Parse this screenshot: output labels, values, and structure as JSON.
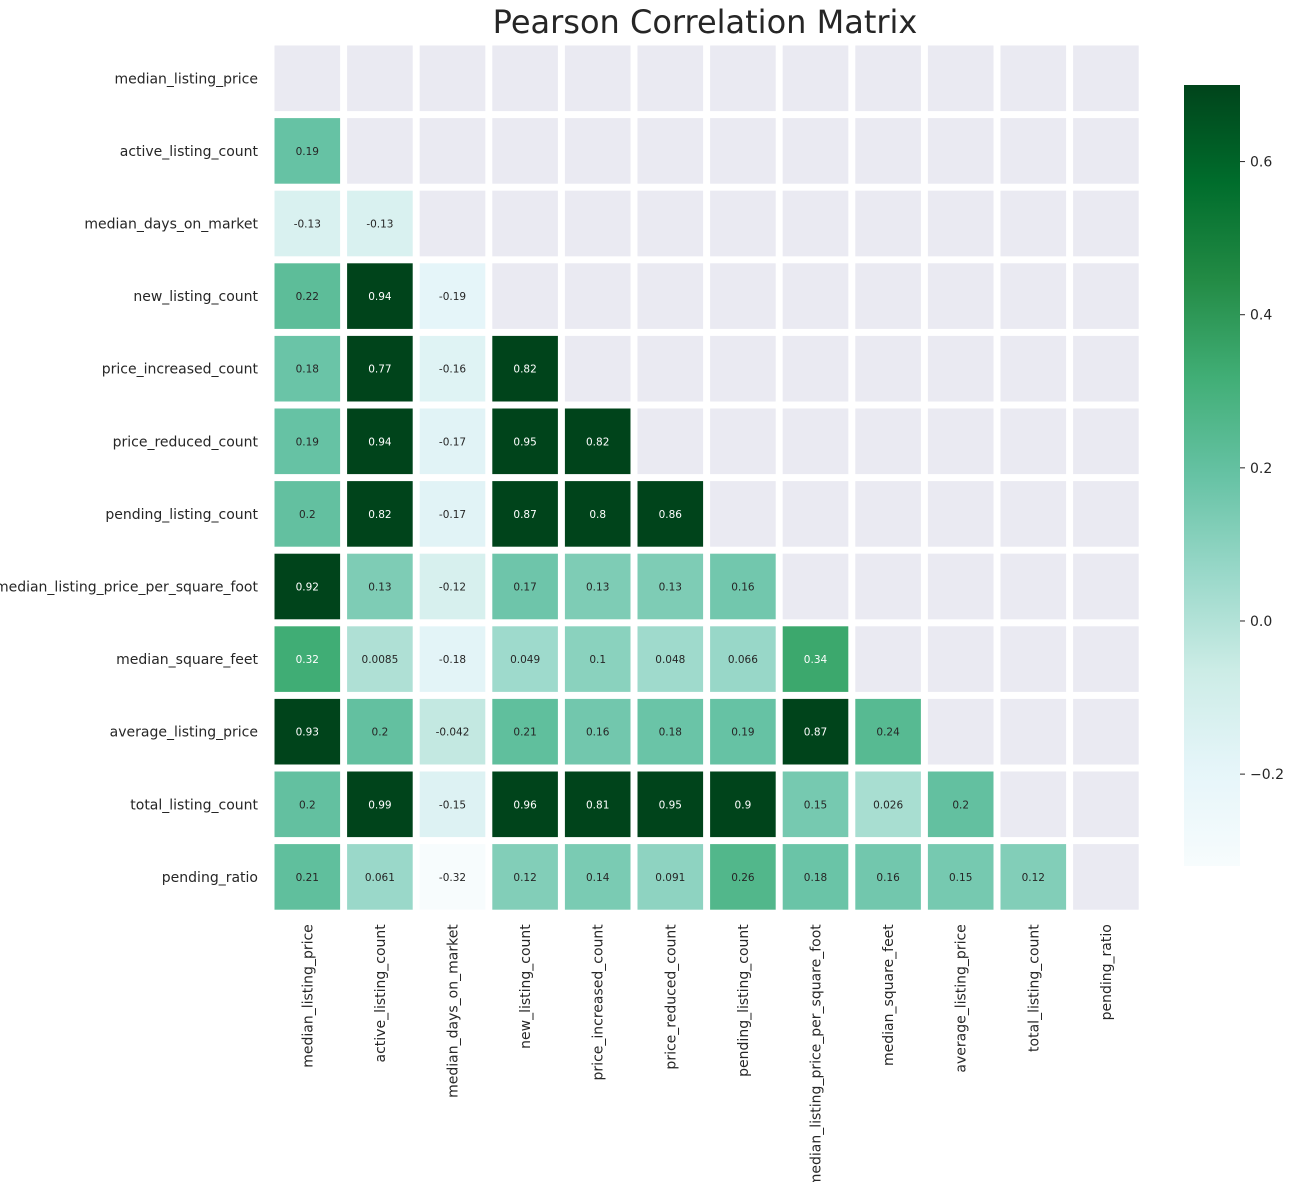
{
  "chart_data": {
    "type": "heatmap",
    "title": "Pearson Correlation Matrix",
    "variables": [
      "median_listing_price",
      "active_listing_count",
      "median_days_on_market",
      "new_listing_count",
      "price_increased_count",
      "price_reduced_count",
      "pending_listing_count",
      "median_listing_price_per_square_foot",
      "median_square_feet",
      "average_listing_price",
      "total_listing_count",
      "pending_ratio"
    ],
    "mask": "upper-triangle-including-diagonal",
    "values": [
      [
        null,
        null,
        null,
        null,
        null,
        null,
        null,
        null,
        null,
        null,
        null,
        null
      ],
      [
        0.19,
        null,
        null,
        null,
        null,
        null,
        null,
        null,
        null,
        null,
        null,
        null
      ],
      [
        -0.13,
        -0.13,
        null,
        null,
        null,
        null,
        null,
        null,
        null,
        null,
        null,
        null
      ],
      [
        0.22,
        0.94,
        -0.19,
        null,
        null,
        null,
        null,
        null,
        null,
        null,
        null,
        null
      ],
      [
        0.18,
        0.77,
        -0.16,
        0.82,
        null,
        null,
        null,
        null,
        null,
        null,
        null,
        null
      ],
      [
        0.19,
        0.94,
        -0.17,
        0.95,
        0.82,
        null,
        null,
        null,
        null,
        null,
        null,
        null
      ],
      [
        0.2,
        0.82,
        -0.17,
        0.87,
        0.8,
        0.86,
        null,
        null,
        null,
        null,
        null,
        null
      ],
      [
        0.92,
        0.13,
        -0.12,
        0.17,
        0.13,
        0.13,
        0.16,
        null,
        null,
        null,
        null,
        null
      ],
      [
        0.32,
        0.0085,
        -0.18,
        0.049,
        0.1,
        0.048,
        0.066,
        0.34,
        null,
        null,
        null,
        null
      ],
      [
        0.93,
        0.2,
        -0.042,
        0.21,
        0.16,
        0.18,
        0.19,
        0.87,
        0.24,
        null,
        null,
        null
      ],
      [
        0.2,
        0.99,
        -0.15,
        0.96,
        0.81,
        0.95,
        0.9,
        0.15,
        0.026,
        0.2,
        null,
        null
      ],
      [
        0.21,
        0.061,
        -0.32,
        0.12,
        0.14,
        0.091,
        0.26,
        0.18,
        0.16,
        0.15,
        0.12,
        null
      ]
    ],
    "value_labels": [
      [
        null,
        null,
        null,
        null,
        null,
        null,
        null,
        null,
        null,
        null,
        null,
        null
      ],
      [
        "0.19",
        null,
        null,
        null,
        null,
        null,
        null,
        null,
        null,
        null,
        null,
        null
      ],
      [
        "-0.13",
        "-0.13",
        null,
        null,
        null,
        null,
        null,
        null,
        null,
        null,
        null,
        null
      ],
      [
        "0.22",
        "0.94",
        "-0.19",
        null,
        null,
        null,
        null,
        null,
        null,
        null,
        null,
        null
      ],
      [
        "0.18",
        "0.77",
        "-0.16",
        "0.82",
        null,
        null,
        null,
        null,
        null,
        null,
        null,
        null
      ],
      [
        "0.19",
        "0.94",
        "-0.17",
        "0.95",
        "0.82",
        null,
        null,
        null,
        null,
        null,
        null,
        null
      ],
      [
        "0.2",
        "0.82",
        "-0.17",
        "0.87",
        "0.8",
        "0.86",
        null,
        null,
        null,
        null,
        null,
        null
      ],
      [
        "0.92",
        "0.13",
        "-0.12",
        "0.17",
        "0.13",
        "0.13",
        "0.16",
        null,
        null,
        null,
        null,
        null
      ],
      [
        "0.32",
        "0.0085",
        "-0.18",
        "0.049",
        "0.1",
        "0.048",
        "0.066",
        "0.34",
        null,
        null,
        null,
        null
      ],
      [
        "0.93",
        "0.2",
        "-0.042",
        "0.21",
        "0.16",
        "0.18",
        "0.19",
        "0.87",
        "0.24",
        null,
        null,
        null
      ],
      [
        "0.2",
        "0.99",
        "-0.15",
        "0.96",
        "0.81",
        "0.95",
        "0.9",
        "0.15",
        "0.026",
        "0.2",
        null,
        null
      ],
      [
        "0.21",
        "0.061",
        "-0.32",
        "0.12",
        "0.14",
        "0.091",
        "0.26",
        "0.18",
        "0.16",
        "0.15",
        "0.12",
        null
      ]
    ],
    "color_scale": {
      "colormap": "BuGn",
      "vmin": -0.32,
      "vmax": 0.7,
      "ticks": [
        0.6,
        0.4,
        0.2,
        0.0,
        -0.2
      ],
      "tick_labels": [
        "0.6",
        "0.4",
        "0.2",
        "0.0",
        "−0.2"
      ]
    },
    "grid": false,
    "legend": "colorbar-right",
    "colors": {
      "masked_cell": "#eaeaf2",
      "background": "#ffffff",
      "text_dark": "#262626"
    }
  }
}
